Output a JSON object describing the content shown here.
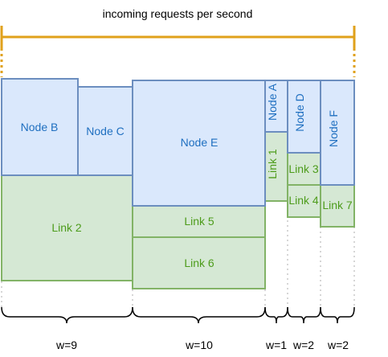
{
  "title": "incoming requests per second",
  "nodes": {
    "node_b": "Node B",
    "node_c": "Node C",
    "node_e": "Node E",
    "node_a": "Node A",
    "node_d": "Node D",
    "node_f": "Node F"
  },
  "links": {
    "link_1": "Link 1",
    "link_2": "Link 2",
    "link_3": "Link 3",
    "link_4": "Link 4",
    "link_5": "Link 5",
    "link_6": "Link 6",
    "link_7": "Link 7"
  },
  "weights": {
    "group_1": "w=9",
    "group_2": "w=10",
    "group_3": "w=1",
    "group_4": "w=2",
    "group_5": "w=2"
  },
  "colors": {
    "node_fill": "#dae8fc",
    "node_stroke": "#6c8ebf",
    "link_fill": "#d5e8d4",
    "link_stroke": "#82b366",
    "accent": "#e0a11b"
  }
}
